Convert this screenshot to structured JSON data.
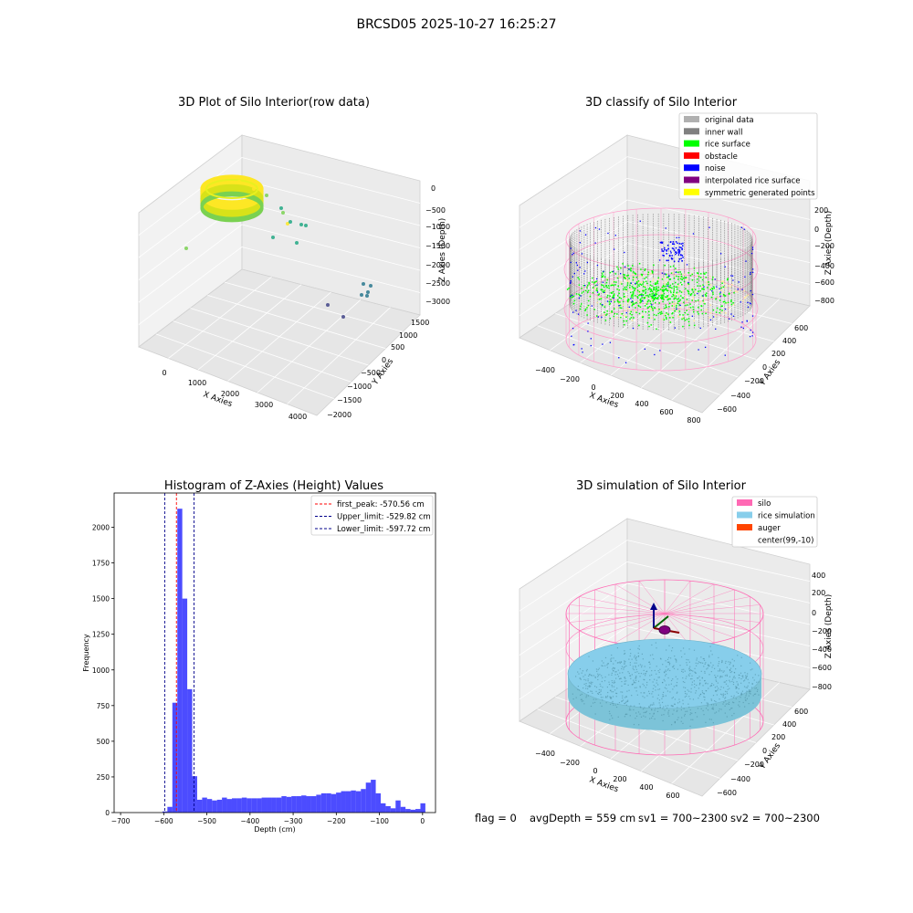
{
  "suptitle": "BRCSD05 2025-10-27 16:25:27",
  "status": {
    "flag": "flag = 0",
    "avg_depth": "avgDepth = 559 cm",
    "sv1": "sv1 = 700~2300",
    "sv2": "sv2 = 700~2300"
  },
  "chart_data": [
    {
      "type": "scatter",
      "projection": "3d",
      "title": "3D Plot of Silo Interior(row data)",
      "xlabel": "X Axies",
      "ylabel": "Y Axies",
      "zlabel": "Z Axies (Depth)",
      "x_ticks": [
        "0",
        "1000",
        "2000",
        "3000",
        "4000"
      ],
      "y_ticks": [
        "−2000",
        "−1500",
        "−1000",
        "−500",
        "0",
        "500",
        "1000",
        "1500"
      ],
      "z_ticks": [
        "0",
        "−500",
        "−1000",
        "−1500",
        "−2000",
        "−2500",
        "−3000"
      ],
      "colormap": [
        "#fde725",
        "#7ad151",
        "#22a884",
        "#2a788e",
        "#414487"
      ],
      "grid": true
    },
    {
      "type": "scatter",
      "projection": "3d",
      "title": "3D classify of Silo Interior",
      "xlabel": "X Axies",
      "ylabel": "Y Axies",
      "zlabel": "Z Axies (Depth)",
      "x_ticks": [
        "−400",
        "−200",
        "0",
        "200",
        "400",
        "600",
        "800"
      ],
      "y_ticks": [
        "−600",
        "−400",
        "−200",
        "0",
        "200",
        "400",
        "600"
      ],
      "z_ticks": [
        "200",
        "0",
        "−200",
        "−400",
        "−600",
        "−800"
      ],
      "legend_position": "top-right",
      "legend": [
        {
          "label": "original data",
          "color": "#b0b0b0"
        },
        {
          "label": "inner wall",
          "color": "#808080"
        },
        {
          "label": "rice surface",
          "color": "#00ff00"
        },
        {
          "label": "obstacle",
          "color": "#ff0000"
        },
        {
          "label": "noise",
          "color": "#0000ff"
        },
        {
          "label": "interpolated rice surface",
          "color": "#800080"
        },
        {
          "label": "symmetric generated points",
          "color": "#ffff00"
        }
      ],
      "cylinder_color": "#ff69b4",
      "grid": true
    },
    {
      "type": "bar",
      "title": "Histogram of Z-Axies (Height) Values",
      "xlabel": "Depth (cm)",
      "ylabel": "Frequency",
      "xlim": [
        -715,
        30
      ],
      "ylim": [
        0,
        2240
      ],
      "x_ticks": [
        -700,
        -600,
        -500,
        -400,
        -300,
        -200,
        -100,
        0
      ],
      "y_ticks": [
        0,
        250,
        500,
        750,
        1000,
        1250,
        1500,
        1750,
        2000
      ],
      "bin_width": 11.5,
      "bar_color": "#0000ff",
      "bins": [
        {
          "x": -603,
          "y": 8
        },
        {
          "x": -591.5,
          "y": 40
        },
        {
          "x": -580,
          "y": 770
        },
        {
          "x": -568.5,
          "y": 2130
        },
        {
          "x": -557,
          "y": 1500
        },
        {
          "x": -545.5,
          "y": 865
        },
        {
          "x": -534,
          "y": 255
        },
        {
          "x": -522.5,
          "y": 90
        },
        {
          "x": -511,
          "y": 105
        },
        {
          "x": -499.5,
          "y": 95
        },
        {
          "x": -488,
          "y": 85
        },
        {
          "x": -476.5,
          "y": 90
        },
        {
          "x": -465,
          "y": 105
        },
        {
          "x": -453.5,
          "y": 95
        },
        {
          "x": -442,
          "y": 100
        },
        {
          "x": -430.5,
          "y": 100
        },
        {
          "x": -419,
          "y": 105
        },
        {
          "x": -407.5,
          "y": 100
        },
        {
          "x": -396,
          "y": 100
        },
        {
          "x": -384.5,
          "y": 100
        },
        {
          "x": -373,
          "y": 105
        },
        {
          "x": -361.5,
          "y": 105
        },
        {
          "x": -350,
          "y": 105
        },
        {
          "x": -338.5,
          "y": 105
        },
        {
          "x": -327,
          "y": 115
        },
        {
          "x": -315.5,
          "y": 110
        },
        {
          "x": -304,
          "y": 115
        },
        {
          "x": -292.5,
          "y": 115
        },
        {
          "x": -281,
          "y": 120
        },
        {
          "x": -269.5,
          "y": 115
        },
        {
          "x": -258,
          "y": 115
        },
        {
          "x": -246.5,
          "y": 125
        },
        {
          "x": -235,
          "y": 135
        },
        {
          "x": -223.5,
          "y": 135
        },
        {
          "x": -212,
          "y": 130
        },
        {
          "x": -200.5,
          "y": 140
        },
        {
          "x": -189,
          "y": 150
        },
        {
          "x": -177.5,
          "y": 150
        },
        {
          "x": -166,
          "y": 155
        },
        {
          "x": -154.5,
          "y": 150
        },
        {
          "x": -143,
          "y": 165
        },
        {
          "x": -131.5,
          "y": 210
        },
        {
          "x": -120,
          "y": 230
        },
        {
          "x": -108.5,
          "y": 135
        },
        {
          "x": -97,
          "y": 65
        },
        {
          "x": -85.5,
          "y": 45
        },
        {
          "x": -74,
          "y": 30
        },
        {
          "x": -62.5,
          "y": 85
        },
        {
          "x": -51,
          "y": 40
        },
        {
          "x": -39.5,
          "y": 25
        },
        {
          "x": -28,
          "y": 20
        },
        {
          "x": -16.5,
          "y": 25
        },
        {
          "x": -5,
          "y": 65
        }
      ],
      "lines": [
        {
          "label": "first_peak: -570.56 cm",
          "x": -570.56,
          "color": "#ff0000"
        },
        {
          "label": "Upper_limit: -529.82 cm",
          "x": -529.82,
          "color": "#00008b"
        },
        {
          "label": "Lower_limit: -597.72 cm",
          "x": -597.72,
          "color": "#00008b"
        }
      ],
      "legend_position": "top-right",
      "grid": false
    },
    {
      "type": "scatter",
      "projection": "3d",
      "title": "3D simulation of Silo Interior",
      "xlabel": "X Axies",
      "ylabel": "Y Axies",
      "zlabel": "Z Axies (Depth)",
      "x_ticks": [
        "−400",
        "−200",
        "0",
        "200",
        "400",
        "600"
      ],
      "y_ticks": [
        "−600",
        "−400",
        "−200",
        "0",
        "200",
        "400",
        "600"
      ],
      "z_ticks": [
        "400",
        "200",
        "0",
        "−200",
        "−400",
        "−600",
        "−800"
      ],
      "legend_position": "top-right",
      "legend": [
        {
          "label": "silo",
          "color": "#ff69b4"
        },
        {
          "label": "rice simulation",
          "color": "#87ceeb"
        },
        {
          "label": "auger",
          "color": "#ff4500"
        },
        {
          "label": "center(99,-10)",
          "color": "#ffffff"
        }
      ],
      "grid": true
    }
  ]
}
